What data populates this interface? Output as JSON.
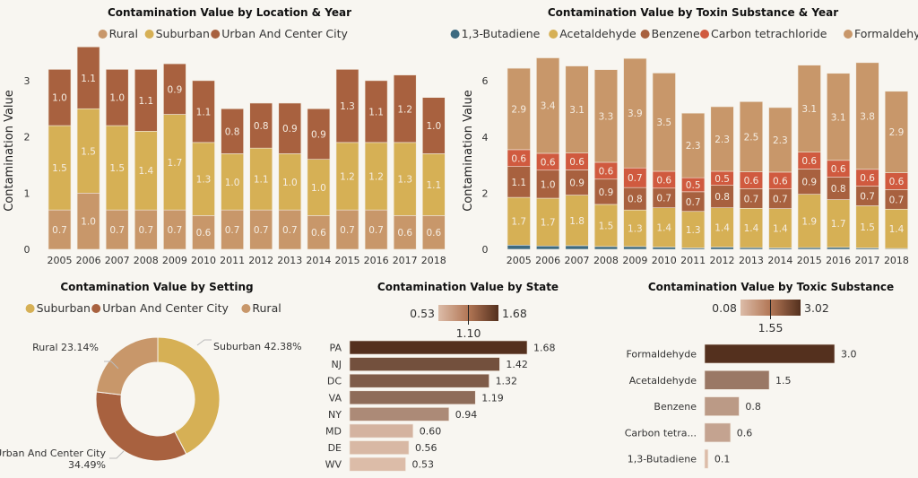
{
  "colors": {
    "background": "#f8f6f1",
    "Rural": "#c8976a",
    "Suburban": "#d6b055",
    "Urban And Center City": "#a8613f",
    "1,3-Butadiene": "#3d6a80",
    "Acetaldehyde": "#d6b055",
    "Benzene": "#a8613f",
    "Carbon tetrachloride": "#d05a3f",
    "Formaldehyde": "#c8976a",
    "gradient_low": "#dcbca8",
    "gradient_high": "#54301e"
  },
  "chart_data": [
    {
      "id": "location-year",
      "type": "bar",
      "stacked": true,
      "title": "Contamination Value by Location & Year",
      "ylabel": "Contamination Value",
      "xlabel": "",
      "ylim": [
        0,
        3.5
      ],
      "yticks": [
        0,
        1,
        2,
        3
      ],
      "legend": "top",
      "categories": [
        "2005",
        "2006",
        "2007",
        "2008",
        "2009",
        "2010",
        "2011",
        "2012",
        "2013",
        "2014",
        "2015",
        "2016",
        "2017",
        "2018"
      ],
      "series": [
        {
          "name": "Rural",
          "values": [
            0.7,
            1.0,
            0.7,
            0.7,
            0.7,
            0.6,
            0.7,
            0.7,
            0.7,
            0.6,
            0.7,
            0.7,
            0.6,
            0.6
          ]
        },
        {
          "name": "Suburban",
          "values": [
            1.5,
            1.5,
            1.5,
            1.4,
            1.7,
            1.3,
            1.0,
            1.1,
            1.0,
            1.0,
            1.2,
            1.2,
            1.3,
            1.1
          ]
        },
        {
          "name": "Urban And Center City",
          "values": [
            1.0,
            1.1,
            1.0,
            1.1,
            0.9,
            1.1,
            0.8,
            0.8,
            0.9,
            0.9,
            1.3,
            1.1,
            1.2,
            1.0
          ]
        }
      ]
    },
    {
      "id": "toxin-year",
      "type": "bar",
      "stacked": true,
      "title": "Contamination Value by Toxin Substance & Year",
      "ylabel": "Contamination Value",
      "xlabel": "",
      "ylim": [
        0,
        7
      ],
      "yticks": [
        0,
        2,
        4,
        6
      ],
      "legend": "top",
      "categories": [
        "2005",
        "2006",
        "2007",
        "2008",
        "2009",
        "2010",
        "2011",
        "2012",
        "2013",
        "2014",
        "2015",
        "2016",
        "2017",
        "2018"
      ],
      "series": [
        {
          "name": "1,3-Butadiene",
          "values": [
            0.15,
            0.12,
            0.13,
            0.1,
            0.1,
            0.08,
            0.05,
            0.08,
            0.06,
            0.05,
            0.06,
            0.07,
            0.05,
            0.03
          ],
          "labels": false
        },
        {
          "name": "Acetaldehyde",
          "values": [
            1.7,
            1.7,
            1.8,
            1.5,
            1.3,
            1.4,
            1.3,
            1.4,
            1.4,
            1.4,
            1.9,
            1.7,
            1.5,
            1.4
          ]
        },
        {
          "name": "Benzene",
          "values": [
            1.1,
            1.0,
            0.9,
            0.9,
            0.8,
            0.7,
            0.7,
            0.8,
            0.7,
            0.7,
            0.9,
            0.8,
            0.7,
            0.7
          ]
        },
        {
          "name": "Carbon tetrachloride",
          "values": [
            0.6,
            0.6,
            0.6,
            0.6,
            0.7,
            0.6,
            0.5,
            0.5,
            0.6,
            0.6,
            0.6,
            0.6,
            0.6,
            0.6
          ]
        },
        {
          "name": "Formaldehyde",
          "values": [
            2.9,
            3.4,
            3.1,
            3.3,
            3.9,
            3.5,
            2.3,
            2.3,
            2.5,
            2.3,
            3.1,
            3.1,
            3.8,
            2.9
          ]
        }
      ]
    },
    {
      "id": "setting",
      "type": "pie",
      "donut": true,
      "title": "Contamination Value by Setting",
      "legend": "top",
      "slices": [
        {
          "name": "Suburban",
          "percent": 42.38,
          "label": "Suburban 42.38%"
        },
        {
          "name": "Urban And Center City",
          "percent": 34.49,
          "label": "Urban And Center City",
          "label2": "34.49%"
        },
        {
          "name": "Rural",
          "percent": 23.14,
          "label": "Rural 23.14%"
        }
      ]
    },
    {
      "id": "state",
      "type": "bar",
      "orientation": "horizontal",
      "title": "Contamination Value by State",
      "color_scale": {
        "min": "0.53",
        "mid": "1.10",
        "max": "1.68"
      },
      "categories": [
        "PA",
        "NJ",
        "DC",
        "VA",
        "NY",
        "MD",
        "DE",
        "WV"
      ],
      "values": [
        1.68,
        1.42,
        1.32,
        1.19,
        0.94,
        0.6,
        0.56,
        0.53
      ],
      "value_labels": [
        "1.68",
        "1.42",
        "1.32",
        "1.19",
        "0.94",
        "0.60",
        "0.56",
        "0.53"
      ]
    },
    {
      "id": "substance",
      "type": "bar",
      "orientation": "horizontal",
      "title": "Contamination Value by Toxic Substance",
      "color_scale": {
        "min": "0.08",
        "mid": "1.55",
        "max": "3.02"
      },
      "categories": [
        "Formaldehyde",
        "Acetaldehyde",
        "Benzene",
        "Carbon tetra...",
        "1,3-Butadiene"
      ],
      "values": [
        3.02,
        1.5,
        0.8,
        0.6,
        0.08
      ],
      "value_labels": [
        "3.0",
        "1.5",
        "0.8",
        "0.6",
        "0.1"
      ]
    }
  ]
}
